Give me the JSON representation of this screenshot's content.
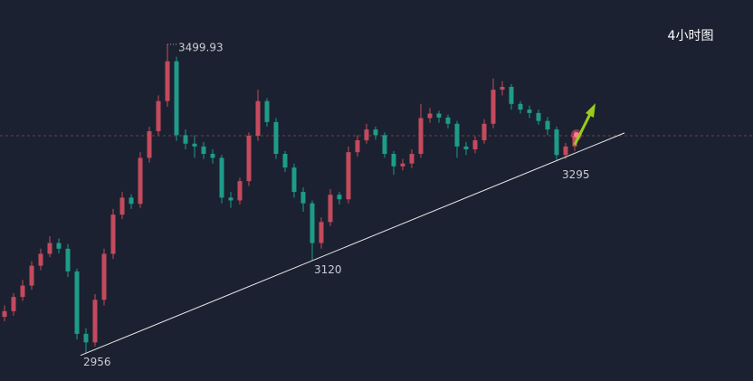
{
  "chart_data": {
    "type": "candlestick",
    "title": "4小时图",
    "ylim": [
      2907,
      3578
    ],
    "up_color": "#c44a5d",
    "down_color": "#1e9c88",
    "open": [
      3020,
      3030,
      3055,
      3075,
      3110,
      3131,
      3150,
      3140,
      3100,
      2990,
      2975,
      3050,
      3131,
      3200,
      3230,
      3219,
      3300,
      3347,
      3400,
      3470,
      3340,
      3325,
      3320,
      3307,
      3300,
      3230,
      3225,
      3259,
      3339,
      3400,
      3363,
      3307,
      3283,
      3240,
      3220,
      3150,
      3187,
      3235,
      3227,
      3310,
      3331,
      3350,
      3340,
      3307,
      3285,
      3290,
      3307,
      3370,
      3378,
      3371,
      3360,
      3320,
      3315,
      3331,
      3360,
      3420,
      3425,
      3395,
      3385,
      3379,
      3365,
      3350,
      3305,
      3320
    ],
    "high": [
      3040,
      3062,
      3085,
      3118,
      3140,
      3162,
      3158,
      3148,
      3105,
      3000,
      3060,
      3140,
      3210,
      3240,
      3236,
      3310,
      3355,
      3410,
      3499.93,
      3478,
      3350,
      3340,
      3328,
      3315,
      3305,
      3240,
      3265,
      3345,
      3420,
      3405,
      3370,
      3312,
      3290,
      3248,
      3225,
      3195,
      3245,
      3240,
      3320,
      3340,
      3360,
      3355,
      3345,
      3312,
      3298,
      3315,
      3395,
      3388,
      3383,
      3376,
      3365,
      3328,
      3338,
      3368,
      3440,
      3435,
      3430,
      3400,
      3392,
      3385,
      3372,
      3355,
      3326,
      3348
    ],
    "low": [
      3012,
      3022,
      3048,
      3068,
      3102,
      3125,
      3132,
      3090,
      2980,
      2956,
      2968,
      3040,
      3122,
      3192,
      3210,
      3212,
      3292,
      3340,
      3390,
      3330,
      3315,
      3300,
      3298,
      3290,
      3220,
      3212,
      3218,
      3250,
      3330,
      3355,
      3298,
      3275,
      3230,
      3205,
      3120,
      3140,
      3180,
      3218,
      3220,
      3302,
      3325,
      3332,
      3300,
      3270,
      3278,
      3282,
      3300,
      3362,
      3362,
      3352,
      3300,
      3305,
      3308,
      3325,
      3352,
      3410,
      3385,
      3378,
      3370,
      3358,
      3340,
      3295,
      3298,
      3312
    ],
    "close": [
      3030,
      3055,
      3075,
      3110,
      3131,
      3150,
      3140,
      3100,
      2990,
      2975,
      3050,
      3131,
      3200,
      3230,
      3219,
      3300,
      3347,
      3400,
      3470,
      3340,
      3325,
      3320,
      3307,
      3300,
      3230,
      3225,
      3259,
      3339,
      3400,
      3363,
      3307,
      3283,
      3240,
      3220,
      3150,
      3187,
      3235,
      3227,
      3310,
      3331,
      3350,
      3340,
      3307,
      3285,
      3290,
      3307,
      3370,
      3378,
      3371,
      3360,
      3320,
      3315,
      3331,
      3360,
      3420,
      3425,
      3395,
      3385,
      3379,
      3365,
      3350,
      3305,
      3320,
      3339
    ]
  }
}
